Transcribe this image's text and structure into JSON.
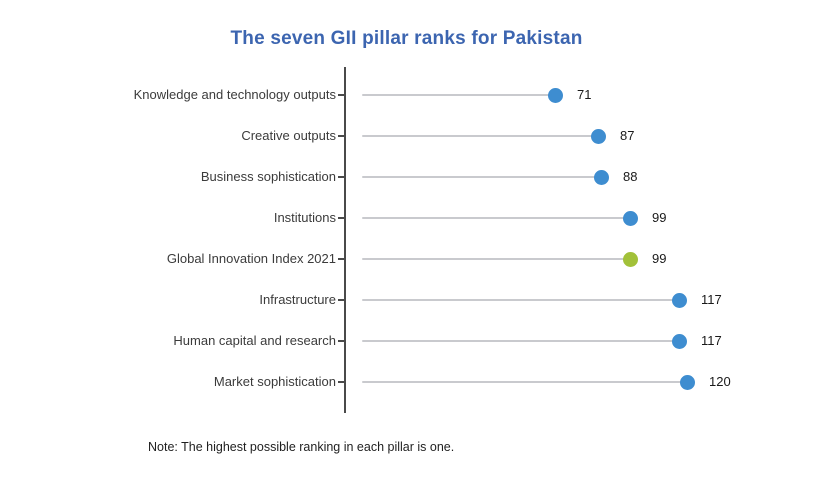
{
  "title": "The seven GII pillar ranks for Pakistan",
  "note": "Note: The highest possible ranking in each pillar is one.",
  "colors": {
    "title": "#3C65B0",
    "dot_default": "#3E8DD0",
    "dot_highlight": "#A2C139",
    "stem": "#C9CACE",
    "axis": "#4A4A4A",
    "category_label": "#3B3B3B",
    "value_label": "#1A1A1A",
    "background": "#FFFFFF"
  },
  "chart_data": {
    "type": "scatter",
    "variant": "horizontal-lollipop",
    "title": "The seven GII pillar ranks for Pakistan",
    "xlabel": "",
    "ylabel": "",
    "xlim": [
      0,
      130
    ],
    "grid": false,
    "legend": false,
    "value_labels_shown": true,
    "note": "Note: The highest possible ranking in each pillar is one.",
    "points": [
      {
        "label": "Knowledge and technology outputs",
        "value": 71,
        "highlight": false
      },
      {
        "label": "Creative outputs",
        "value": 87,
        "highlight": false
      },
      {
        "label": "Business sophistication",
        "value": 88,
        "highlight": false
      },
      {
        "label": "Institutions",
        "value": 99,
        "highlight": false
      },
      {
        "label": "Global Innovation Index 2021",
        "value": 99,
        "highlight": true
      },
      {
        "label": "Infrastructure",
        "value": 117,
        "highlight": false
      },
      {
        "label": "Human capital and research",
        "value": 117,
        "highlight": false
      },
      {
        "label": "Market sophistication",
        "value": 120,
        "highlight": false
      }
    ]
  }
}
